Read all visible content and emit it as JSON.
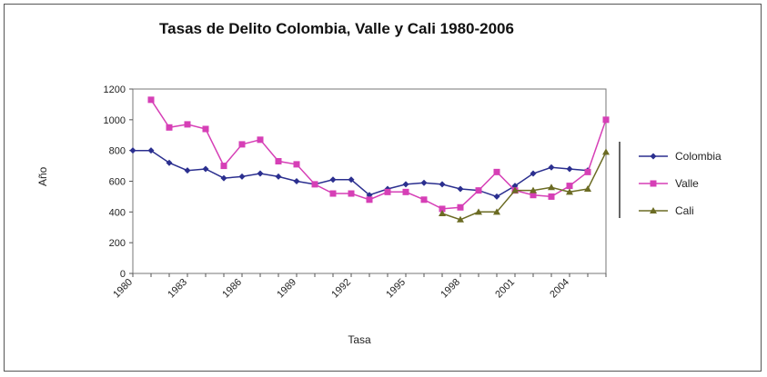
{
  "chart_data": {
    "type": "line",
    "title": "Tasas de Delito Colombia, Valle y Cali 1980-2006",
    "xlabel": "Tasa",
    "ylabel": "Año",
    "ylim": [
      0,
      1200
    ],
    "yticks": [
      "0",
      "200",
      "400",
      "600",
      "800",
      "1000",
      "1200"
    ],
    "x": [
      1980,
      1981,
      1982,
      1983,
      1984,
      1985,
      1986,
      1987,
      1988,
      1989,
      1990,
      1991,
      1992,
      1993,
      1994,
      1995,
      1996,
      1997,
      1998,
      1999,
      2000,
      2001,
      2002,
      2003,
      2004,
      2005,
      2006
    ],
    "xtick_labels": [
      {
        "x": 1980,
        "label": "1980"
      },
      {
        "x": 1983,
        "label": "1983"
      },
      {
        "x": 1986,
        "label": "1986"
      },
      {
        "x": 1989,
        "label": "1989"
      },
      {
        "x": 1992,
        "label": "1992"
      },
      {
        "x": 1995,
        "label": "1995"
      },
      {
        "x": 1998,
        "label": "1998"
      },
      {
        "x": 2001,
        "label": "2001"
      },
      {
        "x": 2004,
        "label": "2004"
      }
    ],
    "legend_position": "right",
    "series": [
      {
        "name": "Colombia",
        "color": "#2b2f8f",
        "marker": "diamond",
        "values": [
          800,
          800,
          720,
          670,
          680,
          620,
          630,
          650,
          630,
          600,
          580,
          610,
          610,
          510,
          550,
          580,
          590,
          580,
          550,
          540,
          500,
          570,
          650,
          690,
          680,
          670,
          null
        ]
      },
      {
        "name": "Valle",
        "color": "#d63fb6",
        "marker": "square",
        "values": [
          null,
          1130,
          950,
          970,
          940,
          700,
          840,
          870,
          730,
          710,
          580,
          520,
          520,
          480,
          530,
          530,
          480,
          420,
          430,
          540,
          660,
          540,
          510,
          500,
          570,
          660,
          1000
        ]
      },
      {
        "name": "Cali",
        "color": "#6b6b23",
        "marker": "triangle",
        "values": [
          null,
          null,
          null,
          null,
          null,
          null,
          null,
          null,
          null,
          null,
          null,
          null,
          null,
          null,
          null,
          null,
          null,
          390,
          350,
          400,
          400,
          540,
          540,
          560,
          530,
          550,
          790
        ]
      }
    ]
  }
}
